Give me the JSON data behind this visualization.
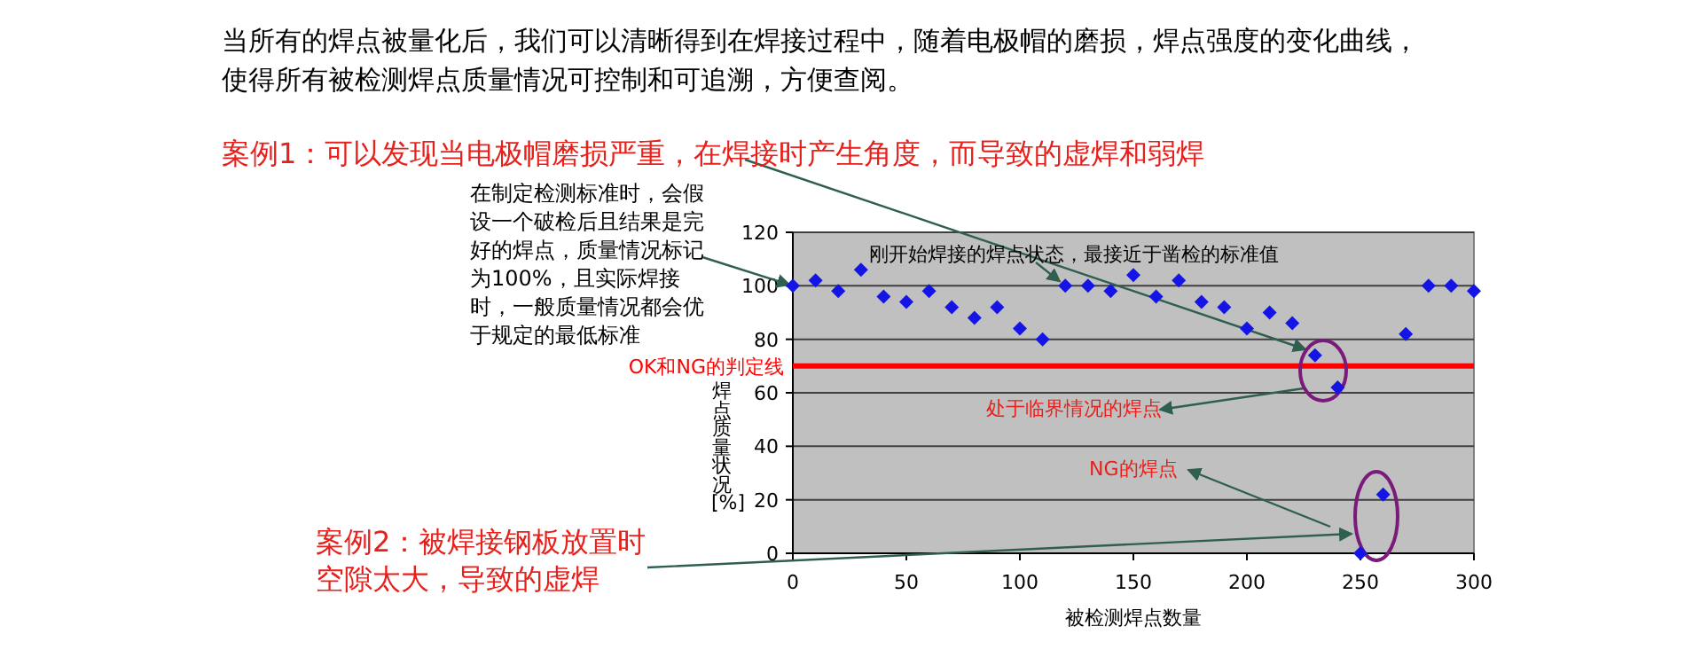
{
  "chart_data": {
    "type": "scatter",
    "xlabel": "被检测焊点数量",
    "ylabel": "焊点质量状况[%]",
    "x": [
      0,
      10,
      20,
      30,
      40,
      50,
      60,
      70,
      80,
      90,
      100,
      110,
      120,
      130,
      140,
      150,
      160,
      170,
      180,
      190,
      200,
      210,
      220,
      230,
      240,
      250,
      260,
      270,
      280,
      290,
      300
    ],
    "series": [
      {
        "color": "#1414e6",
        "values": [
          100,
          102,
          98,
          106,
          96,
          94,
          98,
          92,
          88,
          92,
          84,
          80,
          100,
          100,
          98,
          104,
          96,
          102,
          94,
          92,
          84,
          90,
          86,
          74,
          62,
          0,
          22,
          82,
          100,
          100,
          98
        ]
      }
    ],
    "xlim": [
      0,
      300
    ],
    "xticks": [
      0,
      50,
      100,
      150,
      200,
      250,
      300
    ],
    "ylim": [
      0,
      120
    ],
    "yticks": [
      0,
      20,
      40,
      60,
      80,
      100,
      120
    ],
    "grid": "y",
    "marker": "diamond",
    "ref_lines": [
      {
        "axis": "y",
        "value": 70,
        "label": "OK和NG的判定线",
        "color": "#ff0000"
      }
    ],
    "annotations": [
      "当所有的焊点被量化后，我们可以清晰得到在焊接过程中，随着电极帽的磨损，焊点强度的变化曲线，使得所有被检测焊点质量情况可控制和可追溯，方便查阅。",
      "案例1：可以发现当电极帽磨损严重，在焊接时产生角度，而导致的虚焊和弱焊",
      {
        "text": "在制定检测标准时，会假设一个破检后且结果是完好的焊点，质量情况标记为100%，且实际焊接时，一般质量情况都会优于规定的最低标准",
        "x": 0,
        "y": 100
      },
      {
        "text": "刚开始焊接的焊点状态，最接近于凿检的标准值",
        "x": 120,
        "y": 100
      },
      "处于临界情况的焊点",
      "NG的焊点",
      "案例2：被焊接钢板放置时空隙太大，导致的虚焊"
    ]
  }
}
